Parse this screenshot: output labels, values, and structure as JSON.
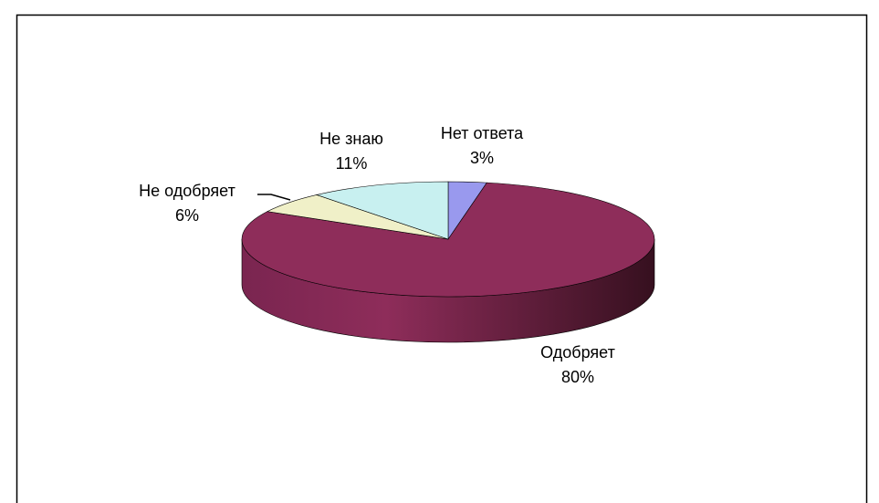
{
  "chart_data": {
    "type": "pie",
    "categories": [
      "Нет ответа",
      "Одобряет",
      "Не одобряет",
      "Не знаю"
    ],
    "values": [
      3,
      80,
      6,
      11
    ],
    "value_labels": [
      "3%",
      "80%",
      "6%",
      "11%"
    ],
    "colors": [
      "#9999ee",
      "#8e2d5a",
      "#f0f0c8",
      "#c8f0f0"
    ]
  }
}
